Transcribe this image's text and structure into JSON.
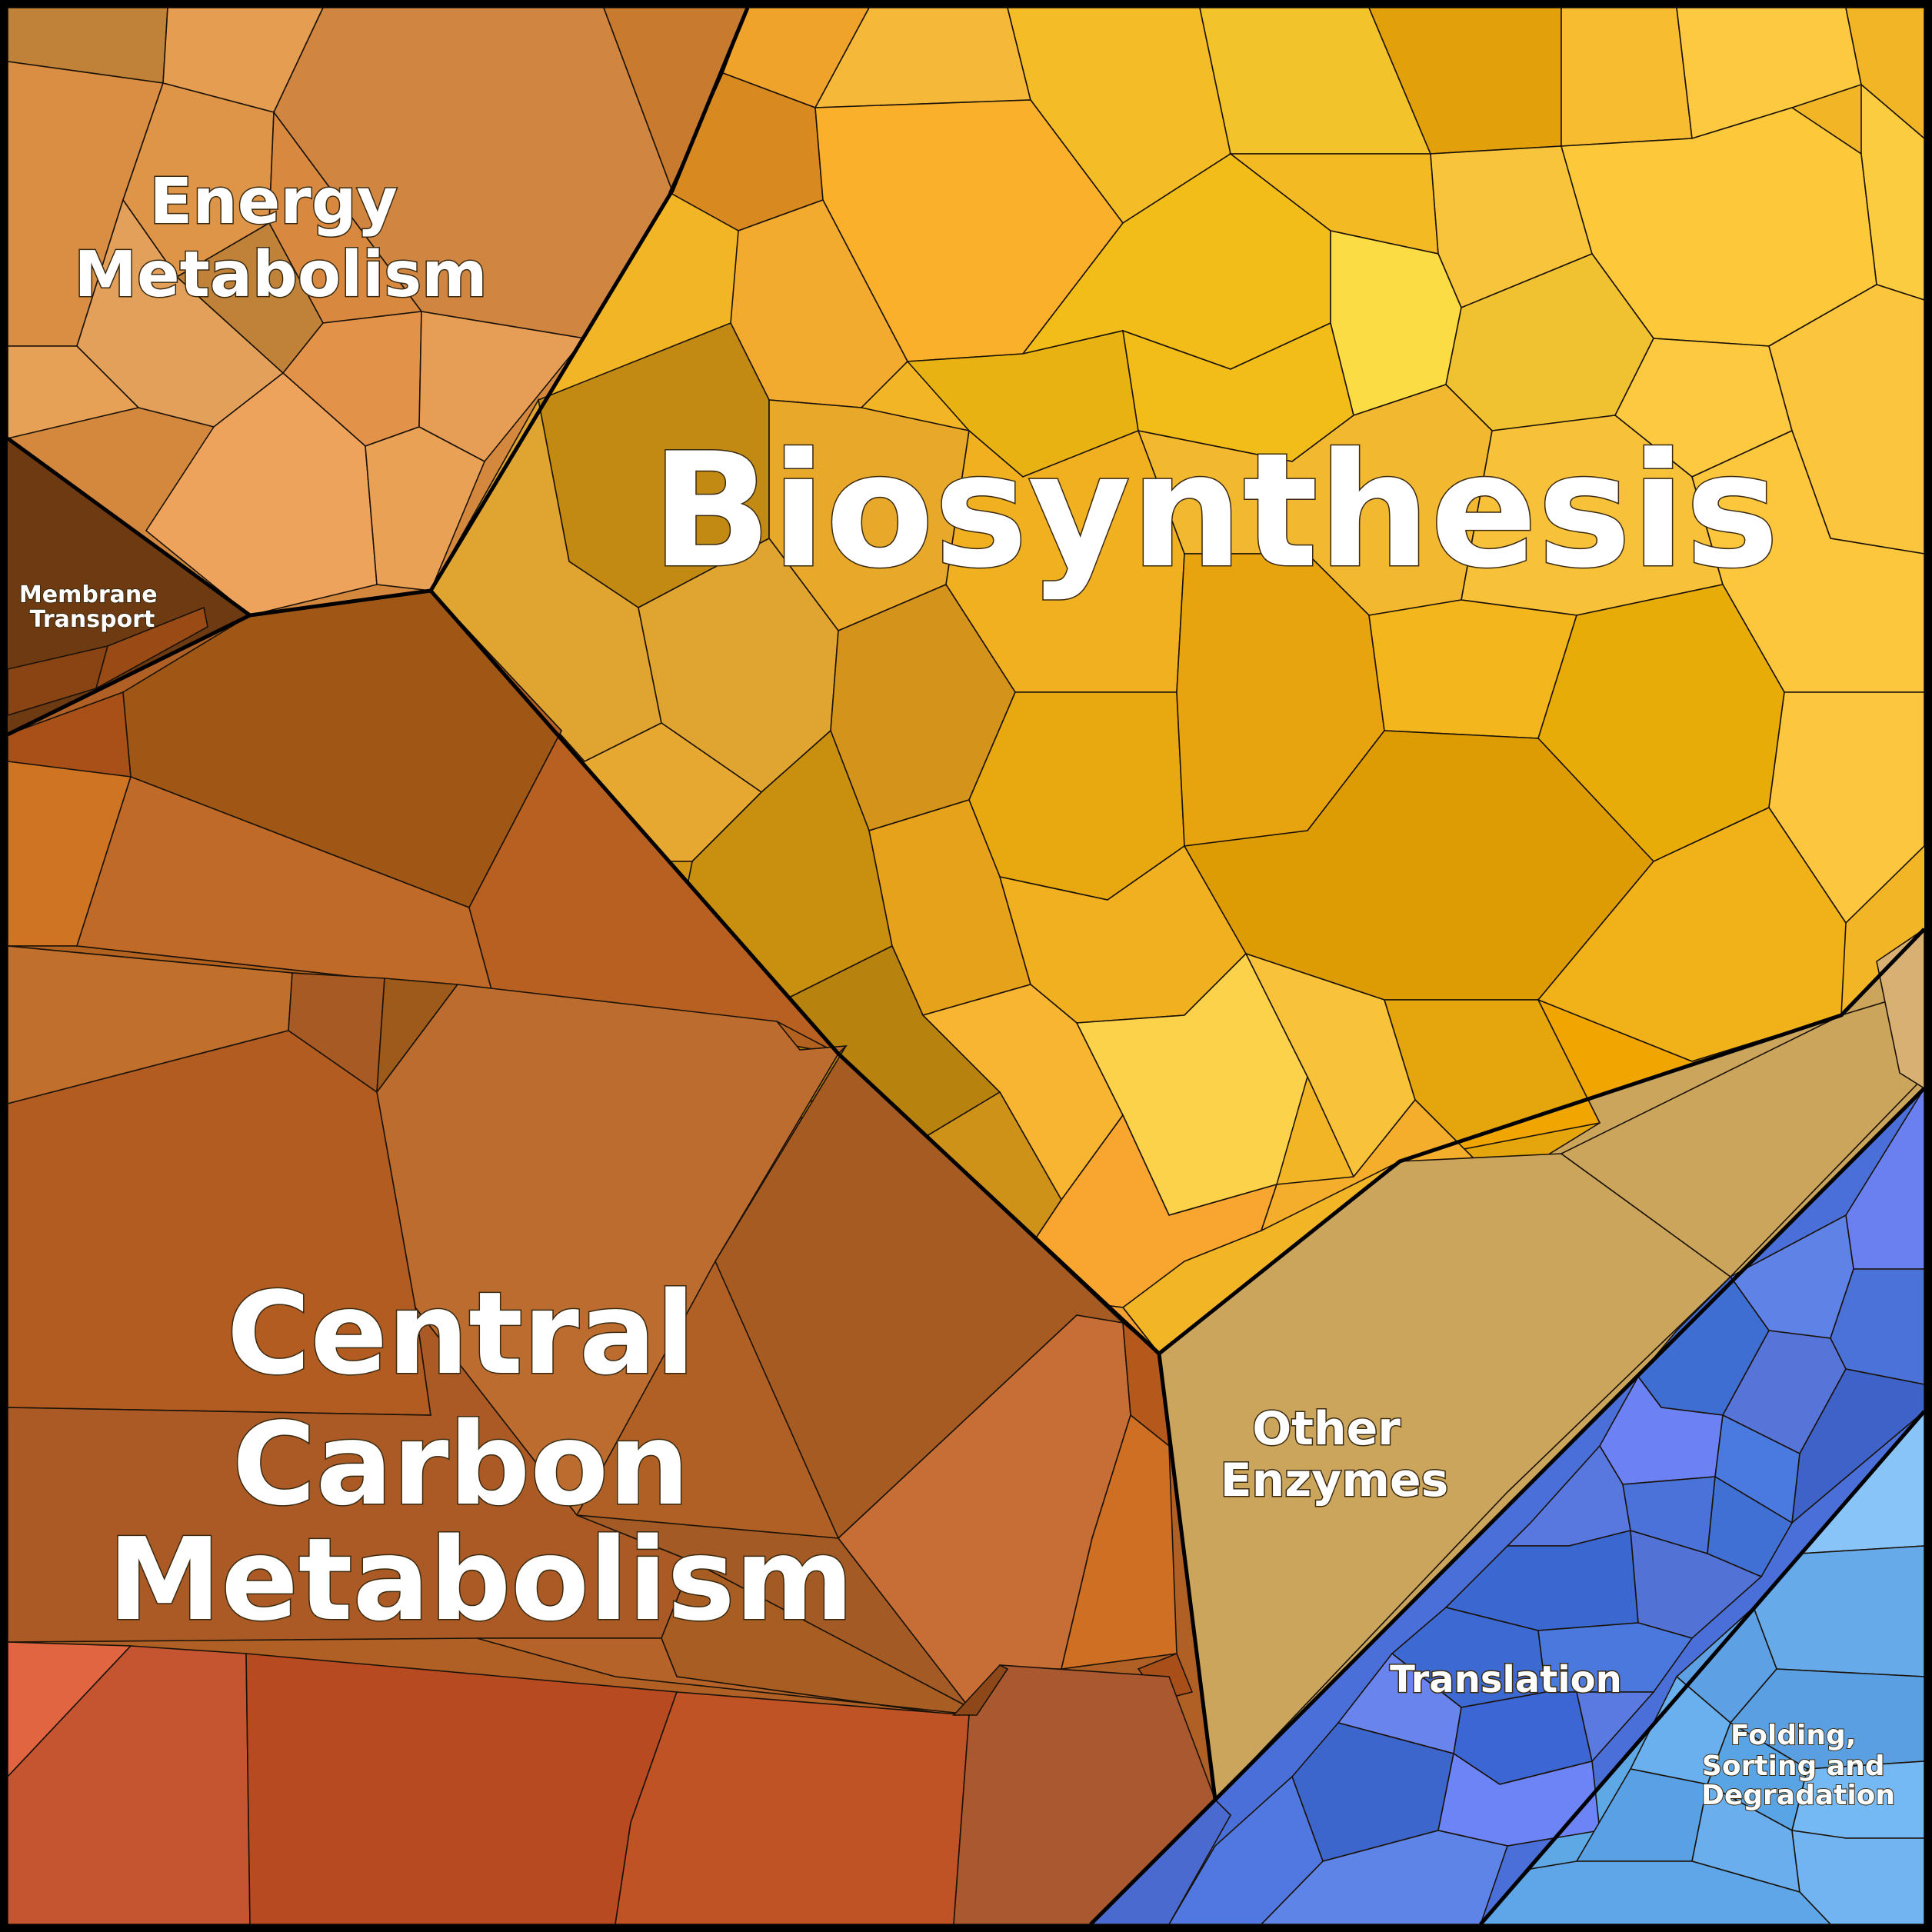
{
  "diagram": {
    "type": "voronoi-treemap",
    "regions": [
      {
        "id": "energy",
        "label": "Energy Metabolism",
        "lines": [
          "Energy",
          "Metabolism"
        ],
        "color": "#d4883e"
      },
      {
        "id": "membrane",
        "label": "Membrane Transport",
        "lines": [
          "Membrane",
          "Transport"
        ],
        "color": "#6e3a12"
      },
      {
        "id": "biosynthesis",
        "label": "Biosynthesis",
        "lines": [
          "Biosynthesis"
        ],
        "color": "#f2b526"
      },
      {
        "id": "central",
        "label": "Central Carbon Metabolism",
        "lines": [
          "Central",
          "Carbon",
          "Metabolism"
        ],
        "color": "#b06025"
      },
      {
        "id": "other",
        "label": "Other Enzymes",
        "lines": [
          "Other",
          "Enzymes"
        ],
        "color": "#cca55c"
      },
      {
        "id": "translation",
        "label": "Translation",
        "lines": [
          "Translation"
        ],
        "color": "#4a6fd8"
      },
      {
        "id": "folding",
        "label": "Folding, Sorting and Degradation",
        "lines": [
          "Folding,",
          "Sorting and",
          "Degradation"
        ],
        "color": "#5ea8e6"
      }
    ]
  }
}
